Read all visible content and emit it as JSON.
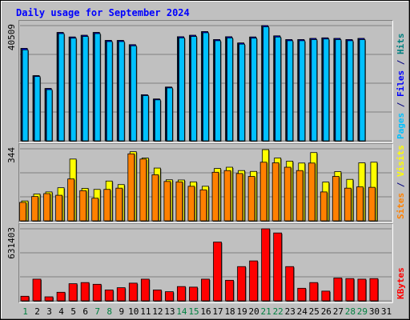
{
  "chart_data": {
    "type": "bar",
    "title": "Daily usage for September 2024",
    "categories": [
      "1",
      "2",
      "3",
      "4",
      "5",
      "6",
      "7",
      "8",
      "9",
      "10",
      "11",
      "12",
      "13",
      "14",
      "15",
      "16",
      "17",
      "18",
      "19",
      "20",
      "21",
      "22",
      "23",
      "24",
      "25",
      "26",
      "27",
      "28",
      "29",
      "30",
      "31"
    ],
    "weekend_days": [
      "1",
      "7",
      "8",
      "14",
      "15",
      "21",
      "22",
      "28",
      "29"
    ],
    "panels": [
      {
        "id": "hits-files",
        "ytick": "40509",
        "ymax": 40509,
        "ylabel": [
          {
            "text": "Pages",
            "color": "#00c0ff"
          },
          {
            "text": " / ",
            "color": "#000080"
          },
          {
            "text": "Files",
            "color": "#0000ff"
          },
          {
            "text": " / ",
            "color": "#000080"
          },
          {
            "text": "Hits",
            "color": "#008080"
          }
        ],
        "series": [
          {
            "name": "Hits",
            "color": "#008080",
            "values": [
              32500,
              22900,
              18400,
              38100,
              36500,
              37100,
              38100,
              35300,
              35300,
              33800,
              16200,
              14700,
              18900,
              36600,
              37100,
              38400,
              35600,
              36600,
              34400,
              36500,
              40509,
              36900,
              35600,
              35600,
              36000,
              36200,
              36000,
              35600,
              36000,
              0,
              0
            ]
          },
          {
            "name": "Files",
            "color": "#0000ff",
            "values": [
              32500,
              22900,
              18400,
              38100,
              36500,
              37100,
              38100,
              35300,
              35300,
              33800,
              16200,
              14700,
              18900,
              36600,
              37100,
              38400,
              35600,
              36600,
              34400,
              36500,
              40509,
              36900,
              35600,
              35600,
              36000,
              36200,
              36000,
              35600,
              36000,
              0,
              0
            ]
          },
          {
            "name": "Pages",
            "color": "#00c0ff",
            "values": [
              32000,
              22600,
              18000,
              37700,
              36100,
              36700,
              37700,
              34900,
              34900,
              33400,
              15900,
              14400,
              18600,
              36200,
              36700,
              38000,
              35200,
              36200,
              34000,
              36100,
              40100,
              36500,
              35200,
              35200,
              35600,
              35800,
              35600,
              35200,
              35600,
              0,
              0
            ]
          }
        ]
      },
      {
        "id": "visits-sites",
        "ytick": "344",
        "ymax": 344,
        "ylabel": [
          {
            "text": "Sites",
            "color": "#ff8000"
          },
          {
            "text": " / ",
            "color": "#000080"
          },
          {
            "text": "Visits",
            "color": "#ffff00"
          }
        ],
        "series": [
          {
            "name": "Visits",
            "color": "#ffff00",
            "values": [
              95,
              128,
              138,
              158,
              295,
              155,
              150,
              190,
              173,
              330,
              300,
              252,
              196,
              195,
              186,
              165,
              250,
              256,
              240,
              236,
              340,
              300,
              285,
              276,
              326,
              185,
              235,
              198,
              277,
              280,
              0
            ]
          },
          {
            "name": "Sites",
            "color": "#ff8000",
            "values": [
              88,
              116,
              130,
              122,
              200,
              144,
              108,
              150,
              156,
              320,
              295,
              220,
              188,
              186,
              165,
              148,
              232,
              240,
              226,
              212,
              280,
              277,
              256,
              240,
              276,
              138,
              212,
              156,
              162,
              160,
              0
            ]
          }
        ]
      },
      {
        "id": "kbytes",
        "ytick": "631403",
        "ymax": 631403,
        "ylabel": [
          {
            "text": "KBytes",
            "color": "#ff0000"
          }
        ],
        "series": [
          {
            "name": "KBytes",
            "color": "#ff0000",
            "values": [
              40000,
              190000,
              35000,
              75000,
              150000,
              160000,
              145000,
              95000,
              115000,
              155000,
              190000,
              95000,
              80000,
              125000,
              120000,
              190000,
              515000,
              180000,
              300000,
              350000,
              631403,
              595000,
              300000,
              110000,
              160000,
              85000,
              200000,
              195000,
              190000,
              195000,
              0
            ]
          }
        ]
      }
    ]
  }
}
